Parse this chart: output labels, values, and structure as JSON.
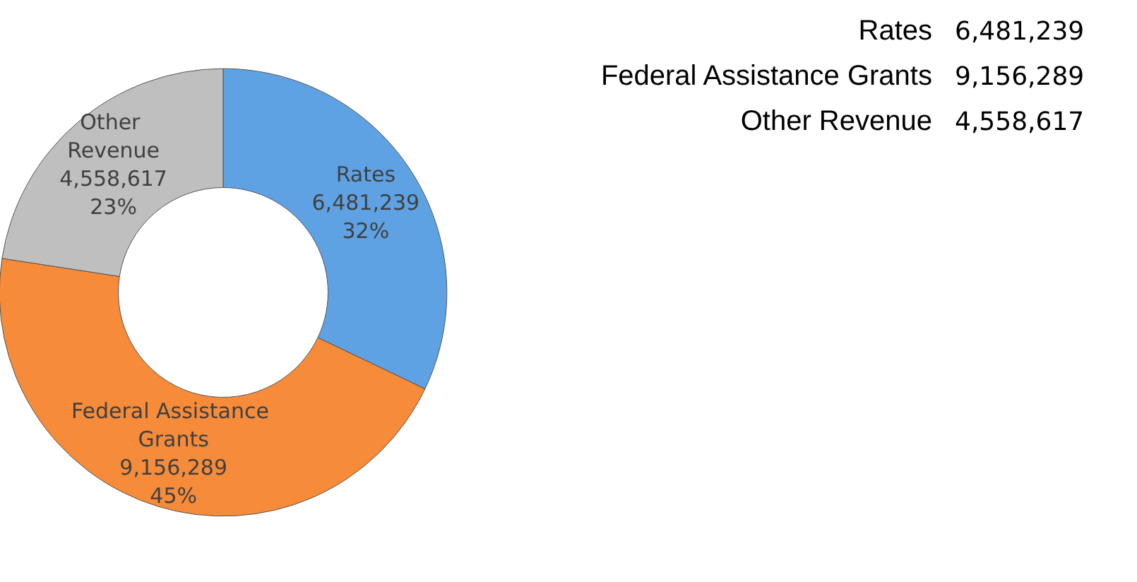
{
  "chart_data": {
    "type": "donut",
    "categories": [
      "Rates",
      "Federal Assistance Grants",
      "Other Revenue"
    ],
    "values": [
      6481239,
      9156289,
      4558617
    ],
    "value_labels": [
      "6,481,239",
      "9,156,289",
      "4,558,617"
    ],
    "annotations": [
      "32%",
      "45%",
      "23%"
    ],
    "colors": [
      "#5fa2e4",
      "#f68b3a",
      "#bfbfbf"
    ],
    "legend": false
  }
}
